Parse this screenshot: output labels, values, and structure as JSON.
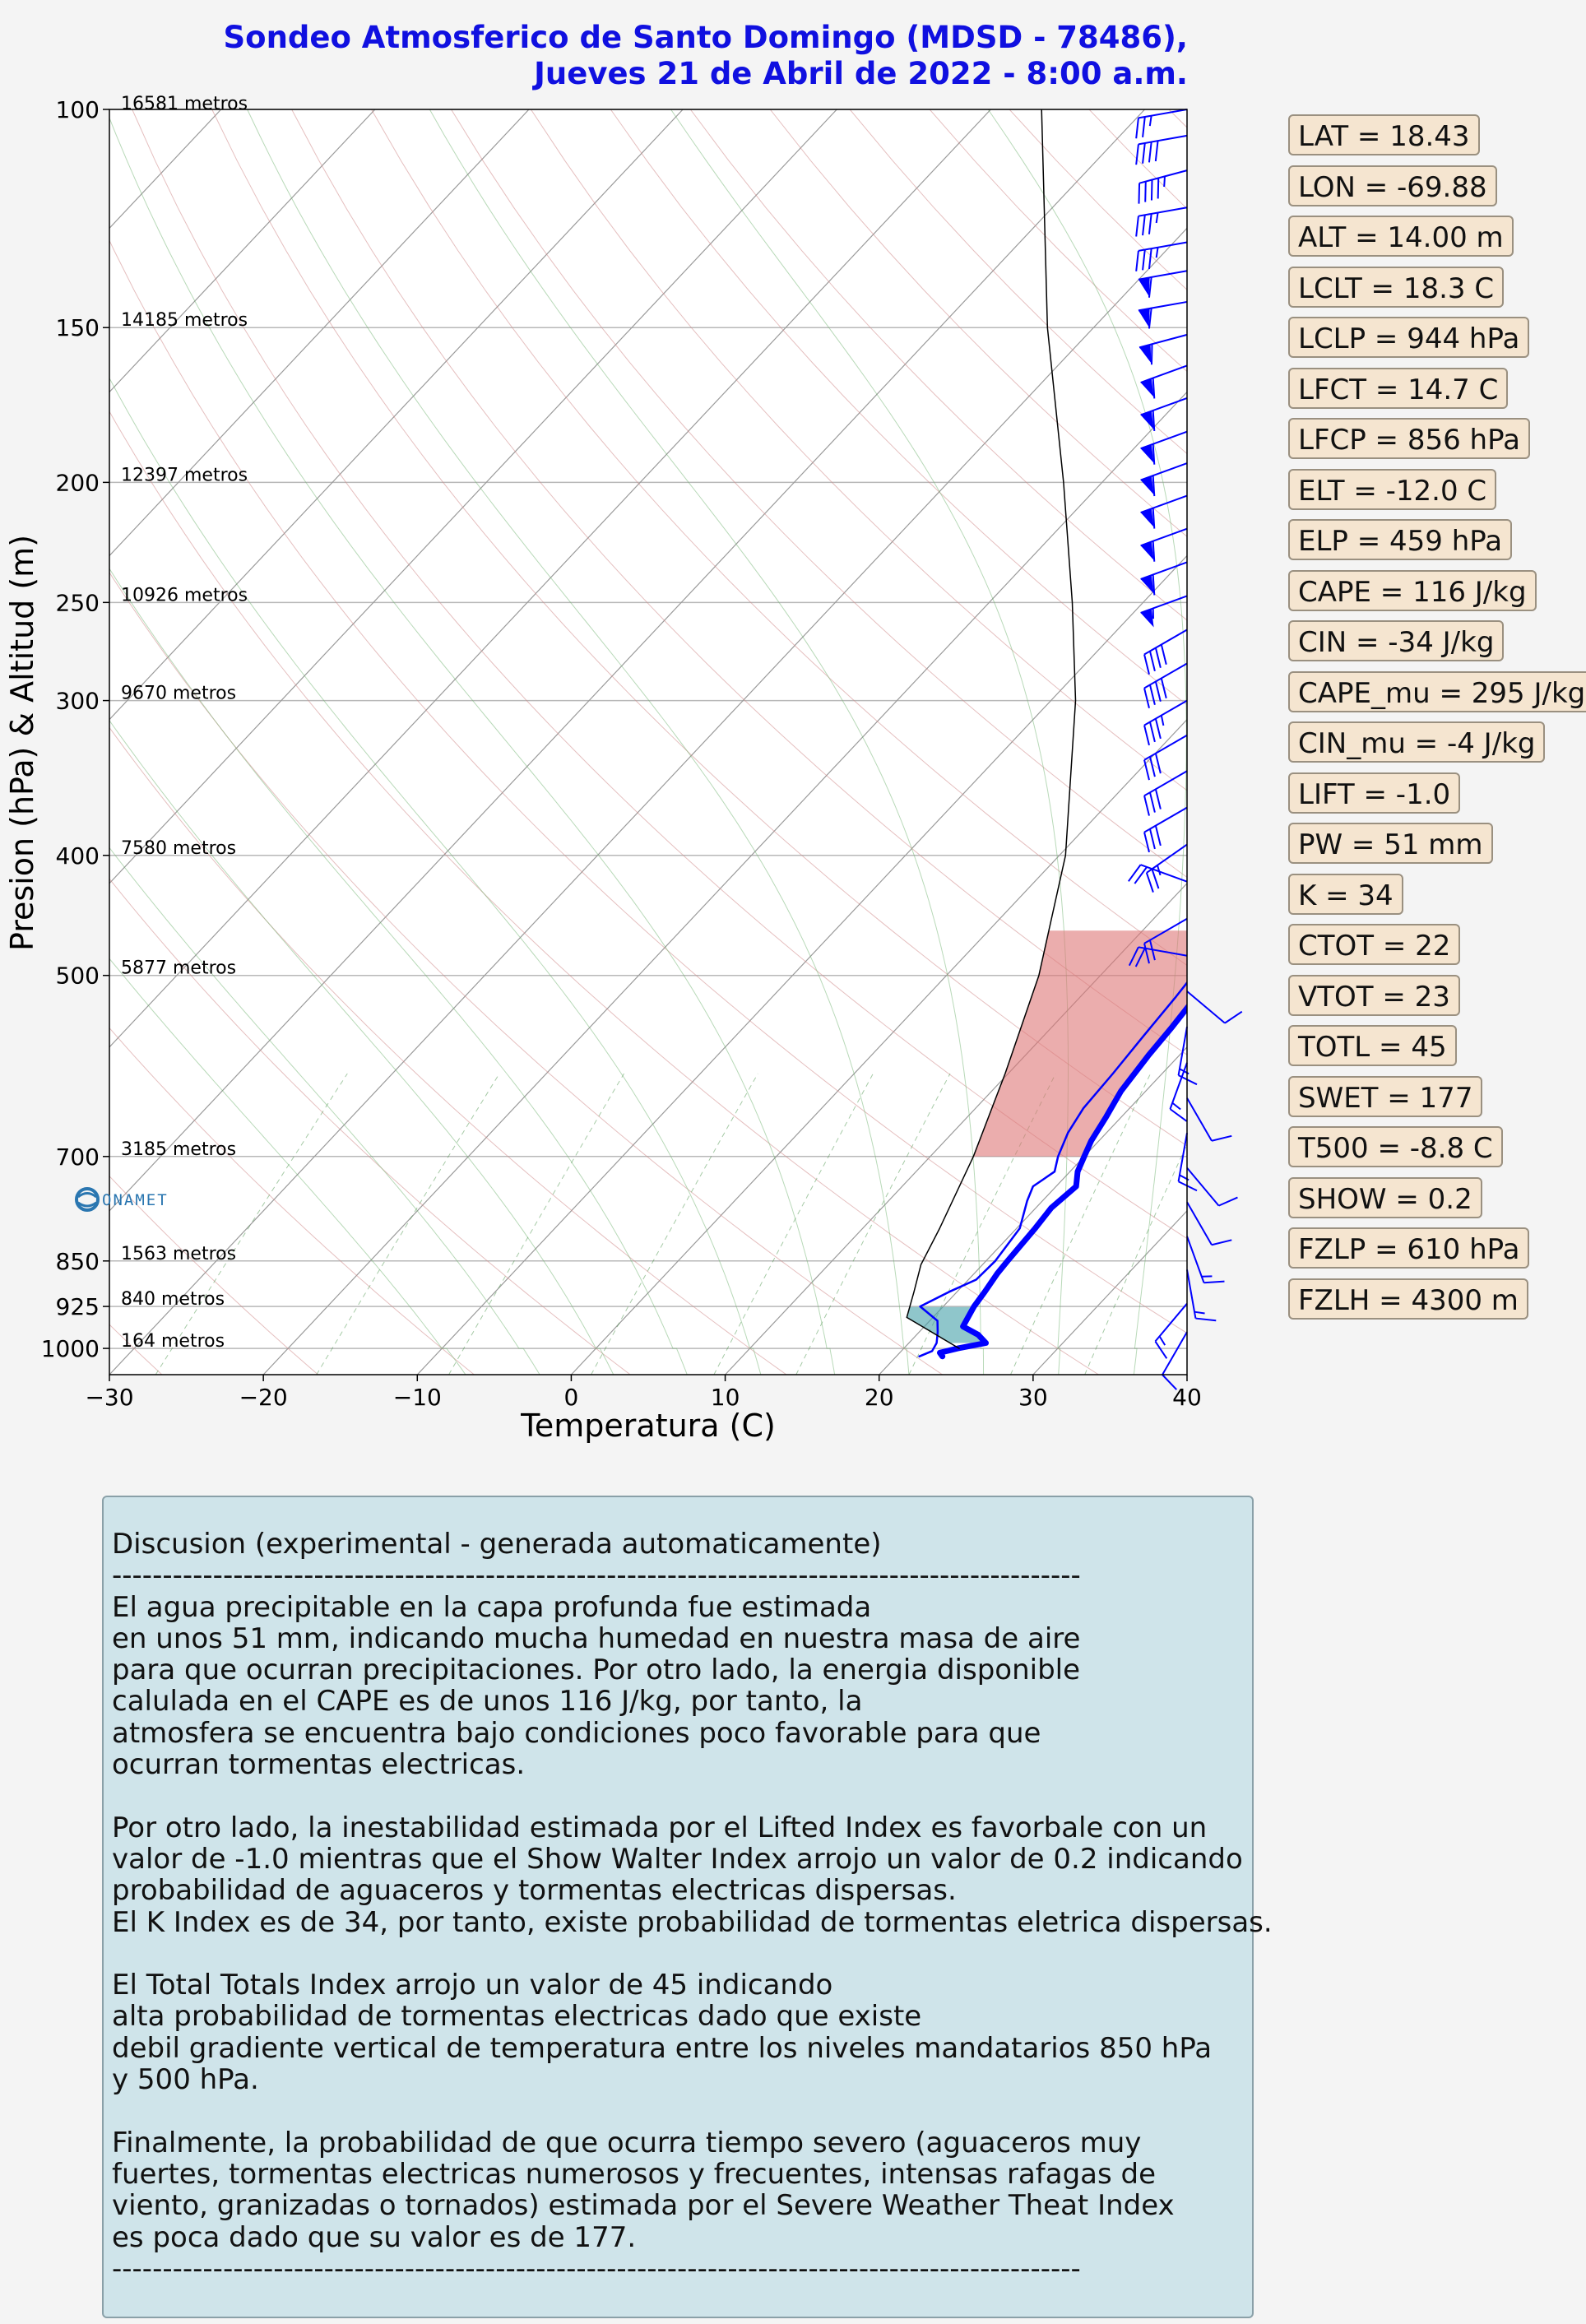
{
  "title": {
    "line1": "Sondeo Atmosferico de Santo Domingo (MDSD - 78486),",
    "line2": "Jueves 21 de Abril de 2022 - 8:00 a.m."
  },
  "chart_data": {
    "type": "line",
    "subtype": "skew-T log-P sounding",
    "xlabel": "Temperatura (C)",
    "ylabel": "Presion (hPa) & Altitud (m)",
    "xlim": [
      -30,
      40
    ],
    "ylim": [
      1050,
      100
    ],
    "y_scale": "log",
    "x_ticks": [
      -30,
      -20,
      -10,
      0,
      10,
      20,
      30,
      40
    ],
    "y_ticks": [
      100,
      150,
      200,
      250,
      300,
      400,
      500,
      700,
      850,
      925,
      1000
    ],
    "altitude_labels": [
      {
        "p": 100,
        "text": "16581 metros"
      },
      {
        "p": 150,
        "text": "14185 metros"
      },
      {
        "p": 200,
        "text": "12397 metros"
      },
      {
        "p": 250,
        "text": "10926 metros"
      },
      {
        "p": 300,
        "text": "9670 metros"
      },
      {
        "p": 400,
        "text": "7580 metros"
      },
      {
        "p": 500,
        "text": "5877 metros"
      },
      {
        "p": 700,
        "text": "3185 metros"
      },
      {
        "p": 850,
        "text": "1563 metros"
      },
      {
        "p": 925,
        "text": "840 metros"
      },
      {
        "p": 1000,
        "text": "164 metros"
      }
    ],
    "logo_text": "ONAMET",
    "series": [
      {
        "role": "temperature",
        "color": "#0000ff",
        "width": 7,
        "points": [
          [
            1015,
            23.0
          ],
          [
            1008,
            22.6
          ],
          [
            1000,
            23.5
          ],
          [
            990,
            25.0
          ],
          [
            975,
            24.0
          ],
          [
            960,
            22.5
          ],
          [
            925,
            22.0
          ],
          [
            900,
            21.8
          ],
          [
            870,
            21.5
          ],
          [
            850,
            21.4
          ],
          [
            800,
            21.2
          ],
          [
            770,
            21.0
          ],
          [
            740,
            21.3
          ],
          [
            720,
            20.5
          ],
          [
            700,
            20.0
          ],
          [
            680,
            19.5
          ],
          [
            650,
            19.0
          ],
          [
            620,
            18.4
          ],
          [
            580,
            18.0
          ],
          [
            550,
            17.8
          ],
          [
            520,
            17.5
          ],
          [
            500,
            17.2
          ],
          [
            480,
            17.0
          ],
          [
            460,
            16.7
          ],
          [
            440,
            16.8
          ],
          [
            420,
            15.6
          ],
          [
            400,
            14.0
          ],
          [
            380,
            13.6
          ],
          [
            360,
            13.3
          ],
          [
            340,
            12.5
          ],
          [
            320,
            11.6
          ],
          [
            300,
            10.4
          ],
          [
            280,
            9.0
          ],
          [
            260,
            7.5
          ],
          [
            250,
            6.6
          ],
          [
            225,
            4.5
          ],
          [
            200,
            2.0
          ],
          [
            175,
            -0.6
          ],
          [
            150,
            -3.6
          ],
          [
            140,
            -3.8
          ],
          [
            130,
            -2.0
          ],
          [
            120,
            2.0
          ],
          [
            115,
            5.5
          ],
          [
            110,
            5.8
          ],
          [
            100,
            5.7
          ]
        ]
      },
      {
        "role": "dewpoint",
        "color": "#0000ff",
        "width": 2.5,
        "points": [
          [
            1015,
            21.5
          ],
          [
            1005,
            22.0
          ],
          [
            990,
            21.8
          ],
          [
            970,
            21.2
          ],
          [
            950,
            20.5
          ],
          [
            925,
            18.5
          ],
          [
            900,
            19.5
          ],
          [
            880,
            20.5
          ],
          [
            850,
            20.6
          ],
          [
            800,
            20.2
          ],
          [
            760,
            19.0
          ],
          [
            740,
            18.5
          ],
          [
            720,
            19.0
          ],
          [
            700,
            18.3
          ],
          [
            670,
            17.5
          ],
          [
            640,
            17.0
          ],
          [
            600,
            16.8
          ],
          [
            560,
            16.5
          ],
          [
            520,
            16.2
          ],
          [
            500,
            16.0
          ],
          [
            470,
            15.5
          ],
          [
            450,
            15.2
          ],
          [
            430,
            14.5
          ],
          [
            400,
            13.5
          ],
          [
            380,
            13.5
          ],
          [
            360,
            12.8
          ],
          [
            330,
            12.0
          ],
          [
            300,
            9.5
          ],
          [
            270,
            7.2
          ],
          [
            250,
            6.3
          ],
          [
            220,
            2.5
          ],
          [
            200,
            0.4
          ],
          [
            180,
            -2.0
          ],
          [
            160,
            -4.4
          ],
          [
            150,
            -5.0
          ],
          [
            145,
            -4.8
          ],
          [
            138,
            -2.8
          ],
          [
            130,
            -0.8
          ],
          [
            120,
            2.5
          ],
          [
            110,
            3.8
          ],
          [
            100,
            4.2
          ]
        ]
      },
      {
        "role": "parcel",
        "color": "#000000",
        "width": 1.5,
        "points": [
          [
            1000,
            23.6
          ],
          [
            944,
            18.3
          ],
          [
            900,
            17.2
          ],
          [
            856,
            16.0
          ],
          [
            800,
            15.0
          ],
          [
            700,
            12.8
          ],
          [
            600,
            9.8
          ],
          [
            500,
            6.0
          ],
          [
            400,
            0.4
          ],
          [
            300,
            -8.4
          ],
          [
            250,
            -14.6
          ],
          [
            200,
            -22.5
          ],
          [
            150,
            -33.0
          ],
          [
            100,
            -46.7
          ]
        ]
      }
    ],
    "wind_barbs": {
      "color": "#0000ff",
      "levels": [
        {
          "p": 100,
          "dir": 80,
          "kt": 25
        },
        {
          "p": 105,
          "dir": 80,
          "kt": 40
        },
        {
          "p": 112,
          "dir": 75,
          "kt": 45
        },
        {
          "p": 120,
          "dir": 80,
          "kt": 35
        },
        {
          "p": 128,
          "dir": 80,
          "kt": 35
        },
        {
          "p": 135,
          "dir": 80,
          "kt": 60
        },
        {
          "p": 143,
          "dir": 80,
          "kt": 60
        },
        {
          "p": 152,
          "dir": 75,
          "kt": 60
        },
        {
          "p": 161,
          "dir": 70,
          "kt": 60
        },
        {
          "p": 171,
          "dir": 70,
          "kt": 60
        },
        {
          "p": 182,
          "dir": 70,
          "kt": 60
        },
        {
          "p": 193,
          "dir": 70,
          "kt": 60
        },
        {
          "p": 205,
          "dir": 70,
          "kt": 60
        },
        {
          "p": 218,
          "dir": 70,
          "kt": 60
        },
        {
          "p": 232,
          "dir": 70,
          "kt": 60
        },
        {
          "p": 247,
          "dir": 70,
          "kt": 55
        },
        {
          "p": 263,
          "dir": 60,
          "kt": 40
        },
        {
          "p": 280,
          "dir": 60,
          "kt": 40
        },
        {
          "p": 300,
          "dir": 60,
          "kt": 35
        },
        {
          "p": 320,
          "dir": 60,
          "kt": 30
        },
        {
          "p": 342,
          "dir": 60,
          "kt": 30
        },
        {
          "p": 366,
          "dir": 60,
          "kt": 30
        },
        {
          "p": 392,
          "dir": 55,
          "kt": 25
        },
        {
          "p": 420,
          "dir": 110,
          "kt": 20
        },
        {
          "p": 450,
          "dir": 60,
          "kt": 20
        },
        {
          "p": 482,
          "dir": 100,
          "kt": 20
        },
        {
          "p": 515,
          "dir": 310,
          "kt": 10
        },
        {
          "p": 550,
          "dir": 10,
          "kt": 15
        },
        {
          "p": 588,
          "dir": 20,
          "kt": 15
        },
        {
          "p": 628,
          "dir": 330,
          "kt": 10
        },
        {
          "p": 670,
          "dir": 10,
          "kt": 15
        },
        {
          "p": 715,
          "dir": 320,
          "kt": 10
        },
        {
          "p": 762,
          "dir": 330,
          "kt": 10
        },
        {
          "p": 812,
          "dir": 340,
          "kt": 15
        },
        {
          "p": 864,
          "dir": 350,
          "kt": 15
        },
        {
          "p": 920,
          "dir": 40,
          "kt": 15
        },
        {
          "p": 970,
          "dir": 30,
          "kt": 10
        }
      ]
    },
    "shading": [
      {
        "name": "CAPE",
        "color": "#dd7777",
        "p_top": 459,
        "p_bottom": 700
      },
      {
        "name": "CIN",
        "color": "#44a0a8",
        "p_top": 925,
        "p_bottom": 990
      }
    ]
  },
  "indices": [
    "LAT  = 18.43",
    "LON = -69.88",
    "ALT = 14.00 m",
    "LCLT = 18.3 C",
    "LCLP = 944 hPa",
    "LFCT = 14.7 C",
    "LFCP = 856 hPa",
    "ELT  = -12.0 C",
    "ELP = 459 hPa",
    "CAPE = 116 J/kg",
    "CIN = -34 J/kg",
    "CAPE_mu = 295 J/kg",
    "CIN_mu = -4 J/kg",
    "LIFT = -1.0",
    "PW = 51 mm",
    "K = 34",
    "CTOT = 22",
    "VTOT = 23",
    "TOTL = 45",
    "SWET = 177",
    "T500 = -8.8 C",
    "SHOW = 0.2",
    "FZLP = 610 hPa",
    "FZLH = 4300 m"
  ],
  "discussion": {
    "heading": "Discusion (experimental - generada automaticamente)",
    "separator": "------------------------------------------------------------------------------------------------",
    "para1": "El agua precipitable en la capa profunda fue estimada\nen unos 51 mm, indicando mucha humedad en nuestra masa de aire\npara que ocurran precipitaciones. Por otro lado, la energia disponible\ncalulada en el CAPE es de unos 116 J/kg, por tanto, la\natmosfera se encuentra bajo condiciones poco favorable para que\nocurran tormentas electricas.",
    "para2": "Por otro lado, la inestabilidad estimada por el Lifted Index es favorbale con un\nvalor de -1.0 mientras que el Show Walter Index arrojo un valor de 0.2 indicando\nprobabilidad de aguaceros y tormentas electricas dispersas.\nEl K Index es de 34, por tanto, existe probabilidad de tormentas eletrica dispersas.",
    "para3": "El Total Totals Index arrojo un valor de 45 indicando\nalta probabilidad de tormentas electricas dado que existe\ndebil gradiente vertical de temperatura entre los niveles mandatarios 850 hPa\ny 500 hPa.",
    "para4": "Finalmente, la probabilidad de que ocurra tiempo severo (aguaceros muy\nfuertes, tormentas electricas numerosos y frecuentes, intensas rafagas de\nviento, granizadas o tornados) estimada por el Severe Weather Theat Index\nes poca dado que su valor es de 177."
  }
}
